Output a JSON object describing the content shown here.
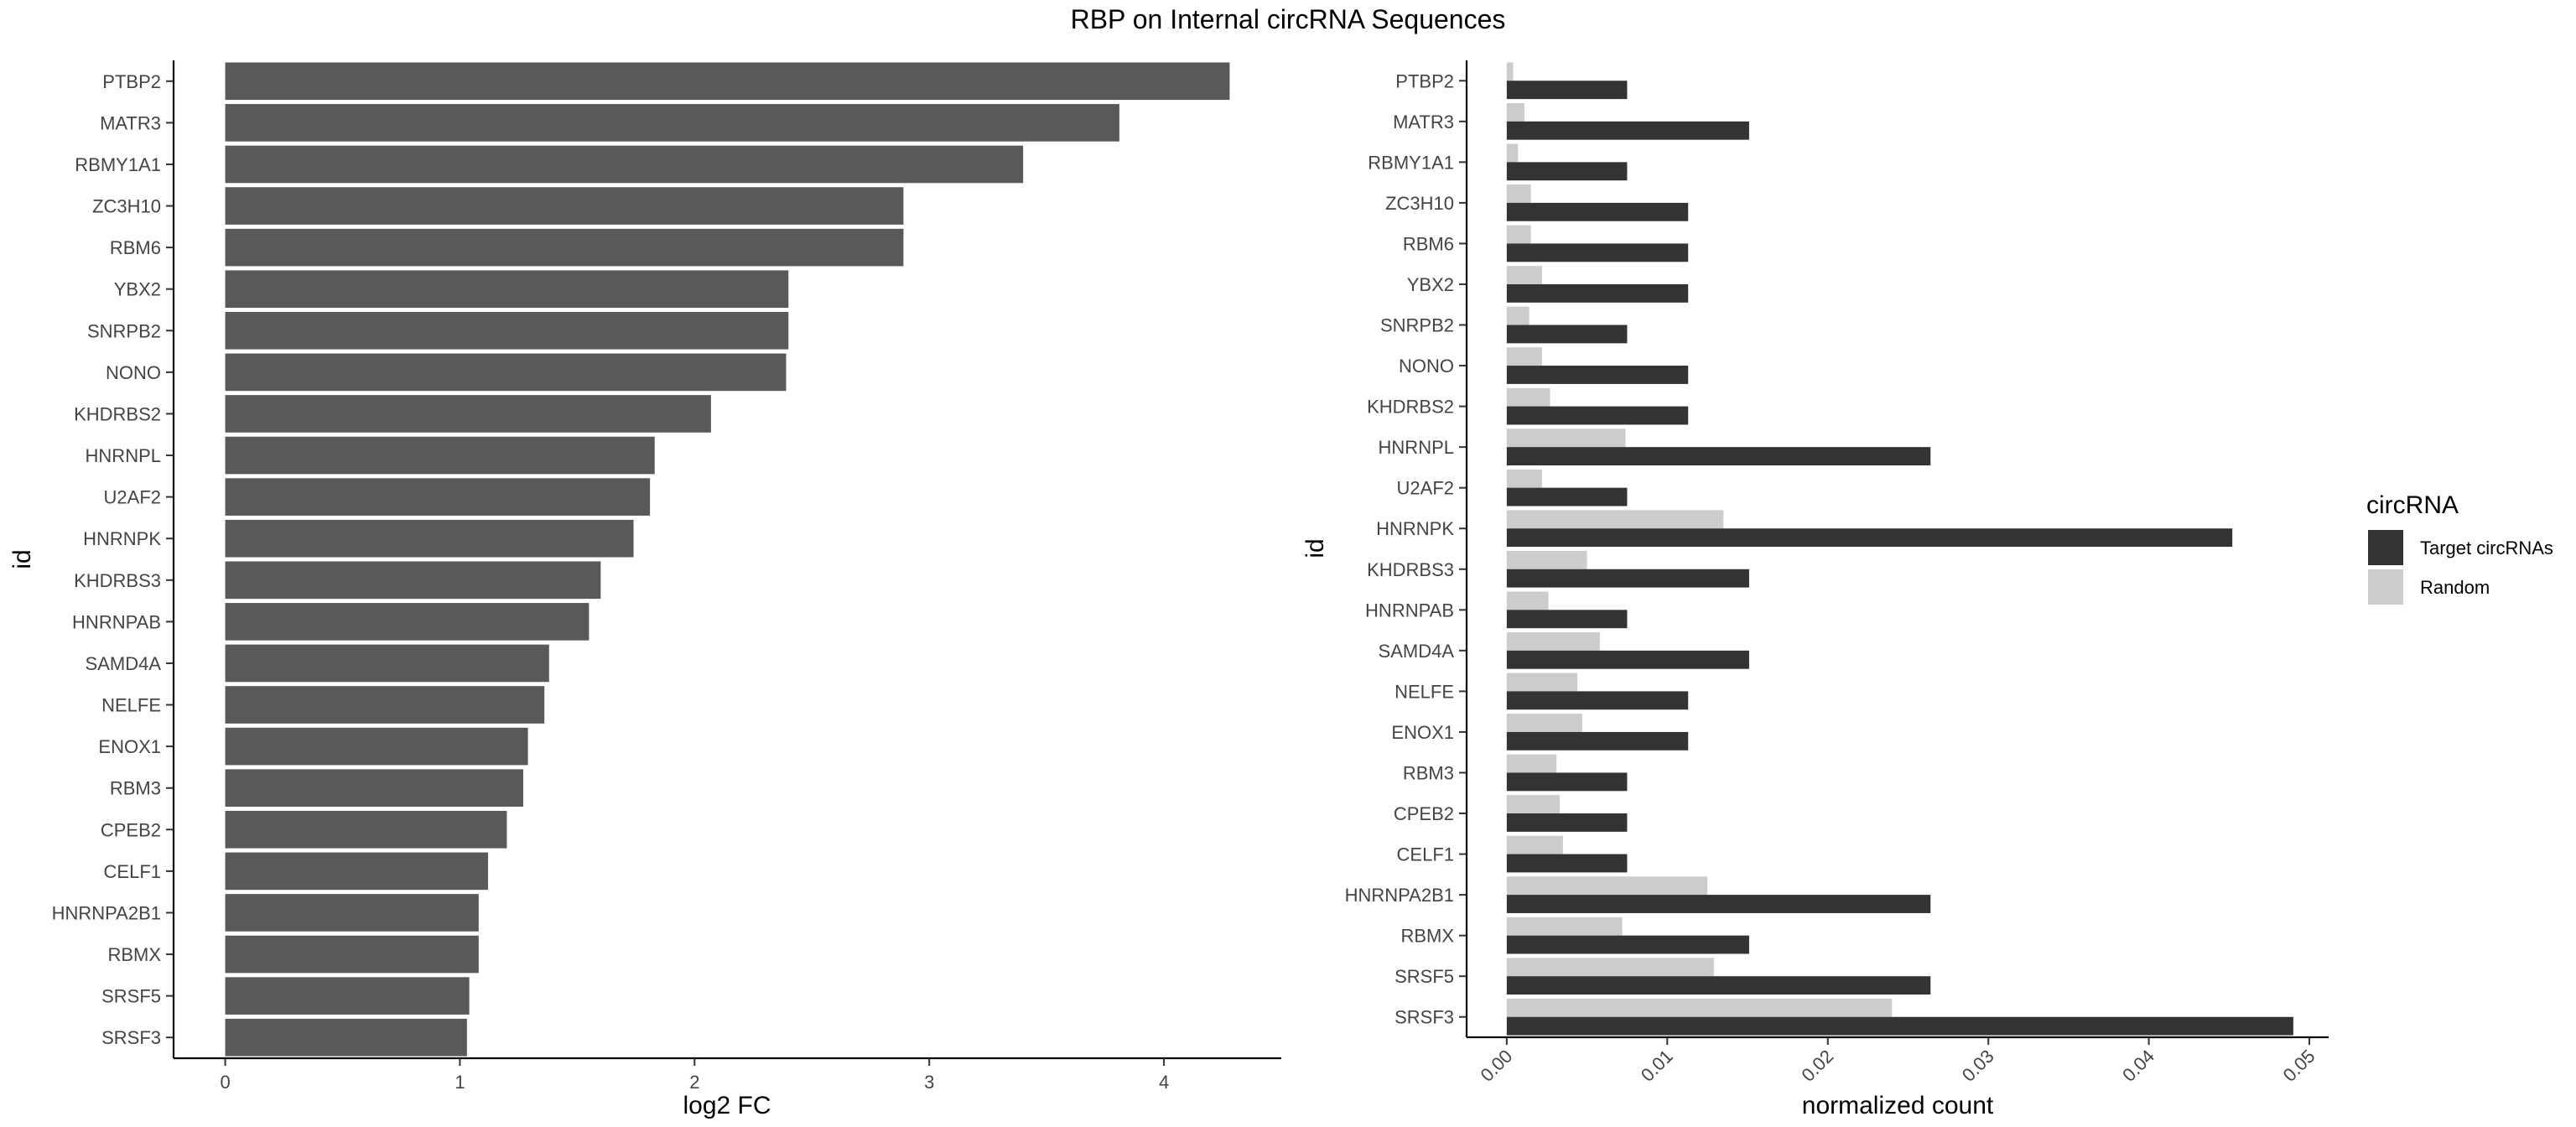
{
  "title": "RBP on Internal circRNA Sequences",
  "chart_data": [
    {
      "type": "bar",
      "orientation": "horizontal",
      "categories": [
        "PTBP2",
        "MATR3",
        "RBMY1A1",
        "ZC3H10",
        "RBM6",
        "YBX2",
        "SNRPB2",
        "NONO",
        "KHDRBS2",
        "HNRNPL",
        "U2AF2",
        "HNRNPK",
        "KHDRBS3",
        "HNRNPAB",
        "SAMD4A",
        "NELFE",
        "ENOX1",
        "RBM3",
        "CPEB2",
        "CELF1",
        "HNRNPA2B1",
        "RBMX",
        "SRSF5",
        "SRSF3"
      ],
      "values": [
        4.28,
        3.81,
        3.4,
        2.89,
        2.89,
        2.4,
        2.4,
        2.39,
        2.07,
        1.83,
        1.81,
        1.74,
        1.6,
        1.55,
        1.38,
        1.36,
        1.29,
        1.27,
        1.2,
        1.12,
        1.08,
        1.08,
        1.04,
        1.03
      ],
      "xlabel": "log2 FC",
      "ylabel": "id",
      "xlim": [
        -0.22,
        4.5
      ],
      "xticks": [
        "0",
        "1",
        "2",
        "3",
        "4"
      ],
      "color": "#595959",
      "grid": false
    },
    {
      "type": "bar",
      "orientation": "horizontal",
      "grouped": true,
      "categories": [
        "PTBP2",
        "MATR3",
        "RBMY1A1",
        "ZC3H10",
        "RBM6",
        "YBX2",
        "SNRPB2",
        "NONO",
        "KHDRBS2",
        "HNRNPL",
        "U2AF2",
        "HNRNPK",
        "KHDRBS3",
        "HNRNPAB",
        "SAMD4A",
        "NELFE",
        "ENOX1",
        "RBM3",
        "CPEB2",
        "CELF1",
        "HNRNPA2B1",
        "RBMX",
        "SRSF5",
        "SRSF3"
      ],
      "series": [
        {
          "name": "Target circRNAs",
          "color": "#333333",
          "values": [
            0.0075,
            0.0151,
            0.0075,
            0.0113,
            0.0113,
            0.0113,
            0.0075,
            0.0113,
            0.0113,
            0.0264,
            0.0075,
            0.0452,
            0.0151,
            0.0075,
            0.0151,
            0.0113,
            0.0113,
            0.0075,
            0.0075,
            0.0075,
            0.0264,
            0.0151,
            0.0264,
            0.049
          ]
        },
        {
          "name": "Random",
          "color": "#cccccc",
          "values": [
            0.0004,
            0.0011,
            0.0007,
            0.0015,
            0.0015,
            0.0022,
            0.0014,
            0.0022,
            0.0027,
            0.0074,
            0.0022,
            0.0135,
            0.005,
            0.0026,
            0.0058,
            0.0044,
            0.0047,
            0.0031,
            0.0033,
            0.0035,
            0.0125,
            0.0072,
            0.0129,
            0.024
          ]
        }
      ],
      "xlabel": "normalized count",
      "ylabel": "id",
      "xlim": [
        -0.0025,
        0.0512
      ],
      "xticks": [
        "0.00",
        "0.01",
        "0.02",
        "0.03",
        "0.04",
        "0.05"
      ],
      "legend": {
        "title": "circRNA",
        "position": "right"
      },
      "grid": false
    }
  ]
}
